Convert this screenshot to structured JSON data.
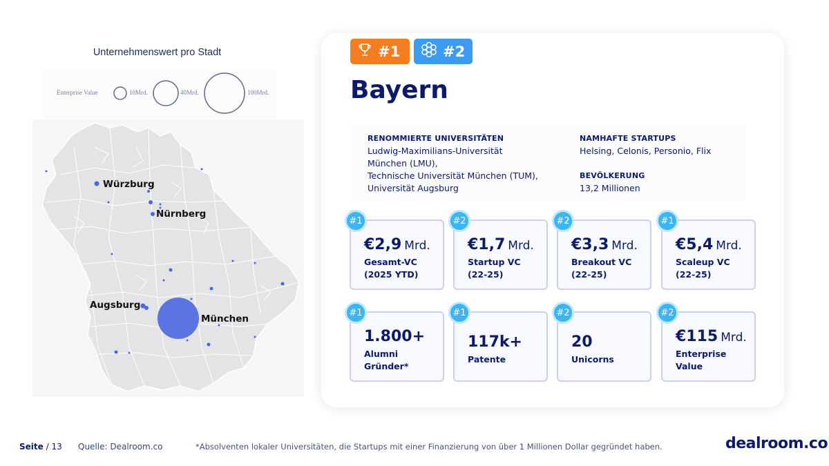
{
  "legend": {
    "title": "Unternehmenswert pro Stadt",
    "label": "Enterprise Value",
    "sizes": [
      "10Mrd.",
      "40Mrd.",
      "100Mrd."
    ]
  },
  "cities": [
    {
      "name": "Würzburg"
    },
    {
      "name": "Nürnberg"
    },
    {
      "name": "Augsburg"
    },
    {
      "name": "München"
    }
  ],
  "badges": [
    {
      "label": "#1",
      "icon": "trophy-icon",
      "color": "#f47d1f"
    },
    {
      "label": "#2",
      "icon": "network-icon",
      "color": "#3c9af0"
    }
  ],
  "state": {
    "name": "Bayern"
  },
  "info": {
    "universities_head": "RENOMMIERTE UNIVERSITÄTEN",
    "universities": "Ludwig-Maximilians-Universität\nMünchen (LMU),\nTechnische Universität München (TUM),\nUniversität Augsburg",
    "startups_head": "NAMHAFTE STARTUPS",
    "startups": "Helsing, Celonis, Personio, Flix",
    "population_head": "BEVÖLKERUNG",
    "population": "13,2 Millionen"
  },
  "stats": [
    {
      "rank": "#1",
      "value": "€2,9",
      "unit": "Mrd.",
      "label": "Gesamt-VC\n(2025 YTD)"
    },
    {
      "rank": "#2",
      "value": "€1,7",
      "unit": "Mrd.",
      "label": "Startup VC\n(22-25)"
    },
    {
      "rank": "#2",
      "value": "€3,3",
      "unit": "Mrd.",
      "label": "Breakout VC\n(22-25)"
    },
    {
      "rank": "#1",
      "value": "€5,4",
      "unit": "Mrd.",
      "label": "Scaleup VC\n(22-25)"
    },
    {
      "rank": "#1",
      "value": "1.800+",
      "unit": "",
      "label": "Alumni\nGründer*"
    },
    {
      "rank": "#1",
      "value": "117k+",
      "unit": "",
      "label": "Patente"
    },
    {
      "rank": "#2",
      "value": "20",
      "unit": "",
      "label": "Unicorns"
    },
    {
      "rank": "#2",
      "value": "€115",
      "unit": "Mrd.",
      "label": "Enterprise\nValue"
    }
  ],
  "footer": {
    "page_label": "Seite",
    "page_total": "/ 13",
    "source": "Quelle: Dealroom.co",
    "note": "*Absolventen lokaler Universitäten, die Startups mit einer Finanzierung von über 1 Millionen Dollar gegründet haben.",
    "logo": "dealroom.co"
  },
  "colors": {
    "accent": "#0b1a6b",
    "bubble": "#4a67e0",
    "rank": "#3cb5f0"
  }
}
